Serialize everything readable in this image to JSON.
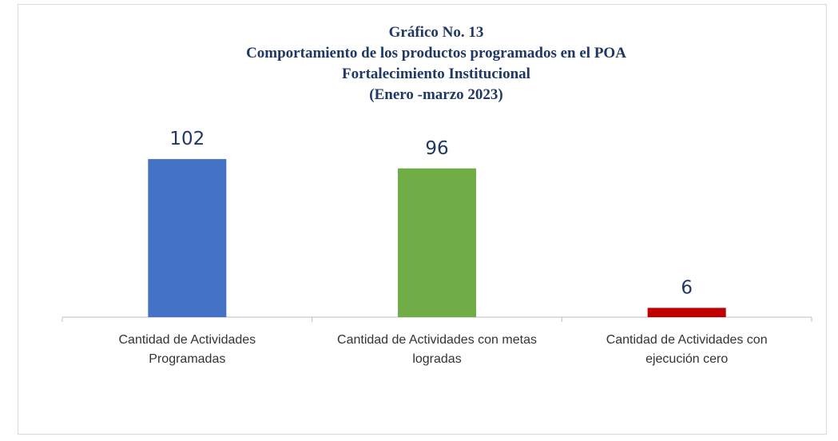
{
  "chart_data": {
    "type": "bar",
    "title": [
      "Gráfico No. 13",
      "Comportamiento de los productos programados en el POA",
      "Fortalecimiento Institucional",
      "(Enero -marzo 2023)"
    ],
    "categories": [
      "Cantidad de Actividades Programadas",
      "Cantidad de Actividades con metas logradas",
      "Cantidad de Actividades con ejecución cero"
    ],
    "values": [
      102,
      96,
      6
    ],
    "colors": [
      "#4472c4",
      "#70ad47",
      "#c00000"
    ]
  }
}
